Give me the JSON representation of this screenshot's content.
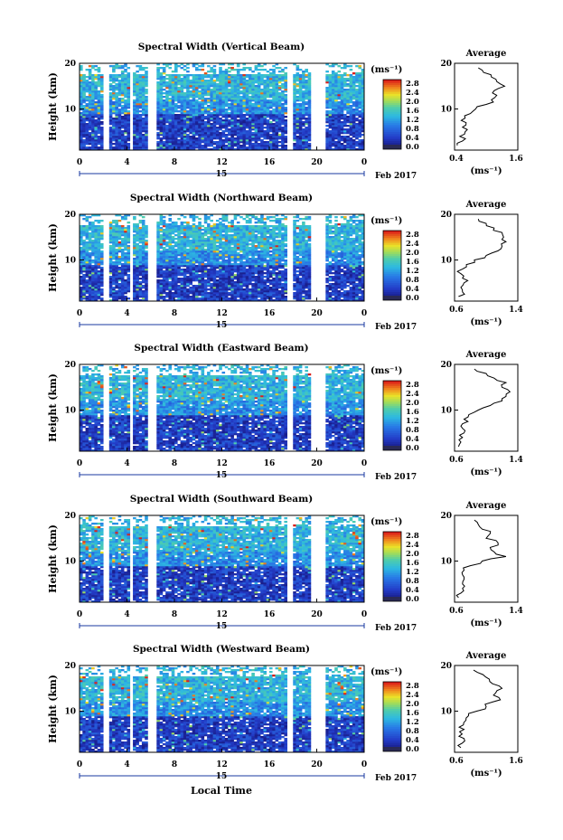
{
  "footer_xlabel": "Local Time",
  "month_label": "Feb 2017",
  "day_label": "15",
  "cbar_unit": "(ms⁻¹)",
  "cbar_ticks": [
    "2.8",
    "2.4",
    "2.0",
    "1.6",
    "1.2",
    "0.8",
    "0.4",
    "0.0"
  ],
  "time_ticks": [
    "0",
    "4",
    "8",
    "12",
    "16",
    "20",
    "0"
  ],
  "height_ticks": [
    "20",
    "10"
  ],
  "colors": {
    "cmap_low": "#1f2fb8",
    "cmap_mid": "#2ec4d8",
    "cmap_high": "#e8231c",
    "gap": "#ffffff"
  },
  "chart_data": [
    {
      "type": "heatmap",
      "title": "Spectral Width (Vertical Beam)",
      "xlabel": "",
      "ylabel": "Height (km)",
      "xlim": [
        0,
        24
      ],
      "ylim": [
        1,
        20
      ],
      "zlim": [
        0,
        3.0
      ],
      "gaps_hours": [
        [
          2.0,
          2.5
        ],
        [
          4.2,
          4.6
        ],
        [
          5.8,
          6.5
        ],
        [
          17.5,
          18.0
        ],
        [
          19.5,
          20.8
        ]
      ],
      "profile": {
        "title": "Average",
        "xlabel": "(ms⁻¹)",
        "xlim": [
          0.4,
          1.6
        ],
        "xticks": [
          "0.4",
          "1.6"
        ],
        "heights": [
          2,
          3,
          4,
          5,
          6,
          7,
          8,
          9,
          10,
          11,
          12,
          13,
          14,
          15,
          16,
          17,
          18,
          19
        ],
        "values": [
          0.45,
          0.55,
          0.5,
          0.6,
          0.55,
          0.62,
          0.6,
          0.7,
          0.8,
          1.0,
          1.1,
          1.2,
          1.15,
          1.35,
          1.2,
          1.1,
          0.95,
          0.85
        ]
      }
    },
    {
      "type": "heatmap",
      "title": "Spectral Width (Northward Beam)",
      "xlabel": "",
      "ylabel": "Height (km)",
      "xlim": [
        0,
        24
      ],
      "ylim": [
        1,
        20
      ],
      "zlim": [
        0,
        3.0
      ],
      "gaps_hours": [
        [
          2.0,
          2.5
        ],
        [
          4.2,
          4.6
        ],
        [
          5.8,
          6.5
        ],
        [
          17.5,
          18.0
        ],
        [
          19.5,
          20.8
        ]
      ],
      "profile": {
        "title": "Average",
        "xlabel": "(ms⁻¹)",
        "xlim": [
          0.6,
          1.4
        ],
        "xticks": [
          "0.6",
          "1.4"
        ],
        "heights": [
          2,
          3,
          4,
          5,
          6,
          7,
          8,
          9,
          10,
          11,
          12,
          13,
          14,
          15,
          16,
          17,
          18,
          19
        ],
        "values": [
          0.65,
          0.7,
          0.68,
          0.72,
          0.7,
          0.68,
          0.7,
          0.75,
          0.85,
          1.0,
          1.15,
          1.2,
          1.25,
          1.22,
          1.2,
          1.1,
          1.0,
          0.9
        ]
      }
    },
    {
      "type": "heatmap",
      "title": "Spectral Width (Eastward Beam)",
      "xlabel": "",
      "ylabel": "Height (km)",
      "xlim": [
        0,
        24
      ],
      "ylim": [
        1,
        20
      ],
      "zlim": [
        0,
        3.0
      ],
      "gaps_hours": [
        [
          2.0,
          2.5
        ],
        [
          4.2,
          4.6
        ],
        [
          5.8,
          6.5
        ],
        [
          17.5,
          18.0
        ],
        [
          19.5,
          20.8
        ]
      ],
      "profile": {
        "title": "Average",
        "xlabel": "(ms⁻¹)",
        "xlim": [
          0.6,
          1.4
        ],
        "xticks": [
          "0.6",
          "1.4"
        ],
        "heights": [
          2,
          3,
          4,
          5,
          6,
          7,
          8,
          9,
          10,
          11,
          12,
          13,
          14,
          15,
          16,
          17,
          18,
          19
        ],
        "values": [
          0.65,
          0.68,
          0.7,
          0.72,
          0.7,
          0.7,
          0.72,
          0.78,
          0.9,
          1.05,
          1.2,
          1.25,
          1.3,
          1.2,
          1.25,
          1.1,
          1.0,
          0.85
        ]
      }
    },
    {
      "type": "heatmap",
      "title": "Spectral Width (Southward Beam)",
      "xlabel": "",
      "ylabel": "Height (km)",
      "xlim": [
        0,
        24
      ],
      "ylim": [
        1,
        20
      ],
      "zlim": [
        0,
        3.0
      ],
      "gaps_hours": [
        [
          2.0,
          2.5
        ],
        [
          4.2,
          4.6
        ],
        [
          5.8,
          6.5
        ],
        [
          17.5,
          18.0
        ],
        [
          19.5,
          20.8
        ]
      ],
      "profile": {
        "title": "Average",
        "xlabel": "(ms⁻¹)",
        "xlim": [
          0.6,
          1.4
        ],
        "xticks": [
          "0.6",
          "1.4"
        ],
        "heights": [
          2,
          3,
          4,
          5,
          6,
          7,
          8,
          9,
          10,
          11,
          12,
          13,
          14,
          15,
          16,
          17,
          18,
          19
        ],
        "values": [
          0.65,
          0.68,
          0.7,
          0.7,
          0.72,
          0.7,
          0.72,
          0.8,
          0.95,
          1.25,
          1.1,
          1.05,
          1.15,
          1.0,
          1.05,
          0.95,
          0.9,
          0.85
        ]
      }
    },
    {
      "type": "heatmap",
      "title": "Spectral Width (Westward Beam)",
      "xlabel": "",
      "ylabel": "Height (km)",
      "xlim": [
        0,
        24
      ],
      "ylim": [
        1,
        20
      ],
      "zlim": [
        0,
        3.0
      ],
      "gaps_hours": [
        [
          2.0,
          2.5
        ],
        [
          4.2,
          4.6
        ],
        [
          5.8,
          6.5
        ],
        [
          17.5,
          18.0
        ],
        [
          19.5,
          20.8
        ]
      ],
      "profile": {
        "title": "Average",
        "xlabel": "(ms⁻¹)",
        "xlim": [
          0.6,
          1.6
        ],
        "xticks": [
          "0.6",
          "1.6"
        ],
        "heights": [
          2,
          3,
          4,
          5,
          6,
          7,
          8,
          9,
          10,
          11,
          12,
          13,
          14,
          15,
          16,
          17,
          18,
          19
        ],
        "values": [
          0.7,
          0.72,
          0.75,
          0.72,
          0.75,
          0.74,
          0.78,
          0.82,
          0.95,
          1.1,
          1.2,
          1.3,
          1.25,
          1.35,
          1.2,
          1.15,
          1.05,
          0.9
        ]
      }
    }
  ]
}
